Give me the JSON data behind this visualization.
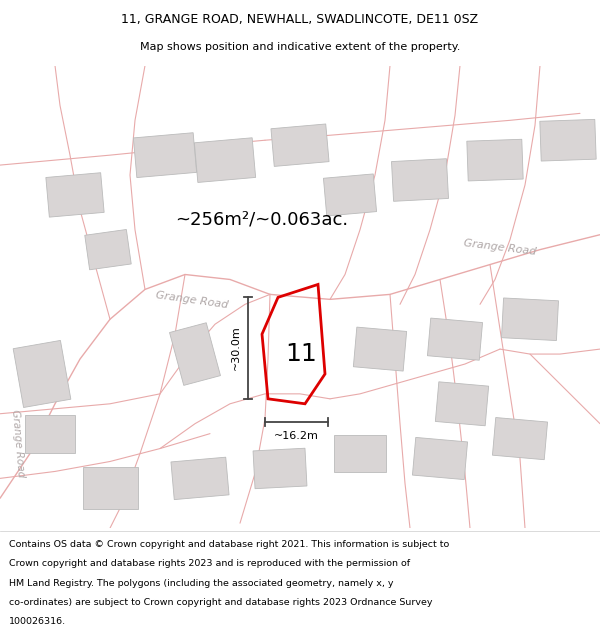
{
  "title_line1": "11, GRANGE ROAD, NEWHALL, SWADLINCOTE, DE11 0SZ",
  "title_line2": "Map shows position and indicative extent of the property.",
  "footer_text": "Contains OS data © Crown copyright and database right 2021. This information is subject to Crown copyright and database rights 2023 and is reproduced with the permission of HM Land Registry. The polygons (including the associated geometry, namely x, y co-ordinates) are subject to Crown copyright and database rights 2023 Ordnance Survey 100026316.",
  "area_label": "~256m²/~0.063ac.",
  "plot_number": "11",
  "dim_width": "~16.2m",
  "dim_height": "~30.0m",
  "map_bg": "#f7f4f4",
  "building_fill": "#d9d5d5",
  "building_edge": "#bbbbbb",
  "road_line_color": "#e8aaaa",
  "plot_polygon_color": "#dd0000",
  "road_label_color": "#b0a8a8",
  "dim_line_color": "#444444",
  "grange_road_diag": "Grange Road",
  "grange_road_right": "Grange Road",
  "grange_road_left": "Grange Road"
}
